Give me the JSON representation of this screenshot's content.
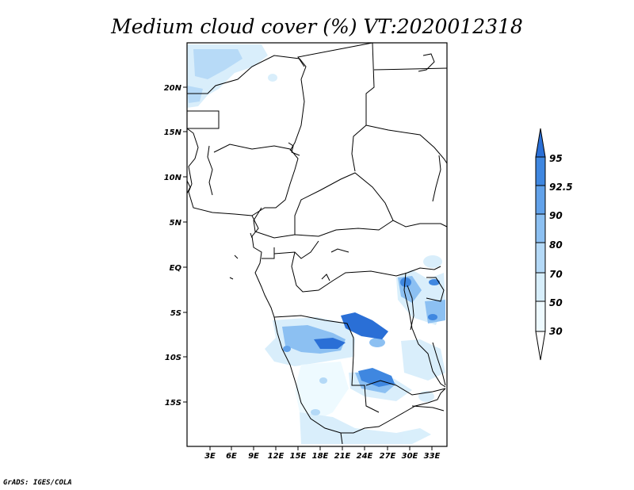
{
  "title": "Medium cloud cover (%) VT:2020012318",
  "credit": "GrADS: IGES/COLA",
  "map": {
    "lat_labels": [
      "20N",
      "15N",
      "10N",
      "5N",
      "EQ",
      "5S",
      "10S",
      "15S"
    ],
    "lon_labels": [
      "3E",
      "6E",
      "9E",
      "12E",
      "15E",
      "18E",
      "21E",
      "24E",
      "27E",
      "30E",
      "33E"
    ]
  },
  "colorbar": {
    "labels": [
      "95",
      "92.5",
      "90",
      "80",
      "70",
      "50",
      "30"
    ],
    "colors": [
      "#2a6fd6",
      "#3f87e0",
      "#62a2ea",
      "#8cc0f2",
      "#b4d9f7",
      "#d7eefb",
      "#eefaff"
    ]
  }
}
